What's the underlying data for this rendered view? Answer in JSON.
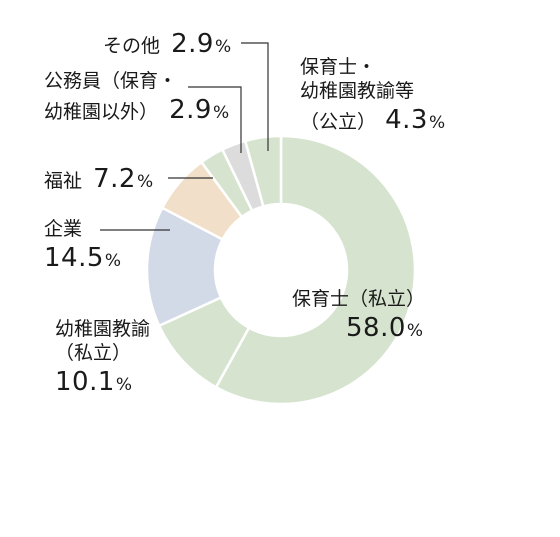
{
  "chart_data": {
    "type": "pie",
    "variant": "donut",
    "unit": "%",
    "slices": [
      {
        "id": "hoikushi-shiritsu",
        "lines": [
          "保育士（私立）"
        ],
        "value": 58.0,
        "value_text": "58.0",
        "color": "#d6e4cf"
      },
      {
        "id": "youchien-shiritsu",
        "lines": [
          "幼稚園教諭",
          "（私立）"
        ],
        "value": 10.1,
        "value_text": "10.1",
        "color": "#d6e4cf"
      },
      {
        "id": "kigyou",
        "lines": [
          "企業"
        ],
        "value": 14.5,
        "value_text": "14.5",
        "color": "#d3dae7"
      },
      {
        "id": "fukushi",
        "lines": [
          "福祉"
        ],
        "value": 7.2,
        "value_text": "7.2",
        "color": "#f1dfca"
      },
      {
        "id": "koumuin",
        "lines": [
          "公務員（保育・",
          "幼稚園以外）"
        ],
        "value": 2.9,
        "value_text": "2.9",
        "color": "#d6e4cf"
      },
      {
        "id": "sonota",
        "lines": [
          "その他"
        ],
        "value": 2.9,
        "value_text": "2.9",
        "color": "#dcdcdc"
      },
      {
        "id": "koukyou",
        "lines": [
          "保育士・",
          "幼稚園教諭等",
          "（公立）"
        ],
        "value": 4.3,
        "value_text": "4.3",
        "color": "#d6e4cf"
      }
    ]
  }
}
